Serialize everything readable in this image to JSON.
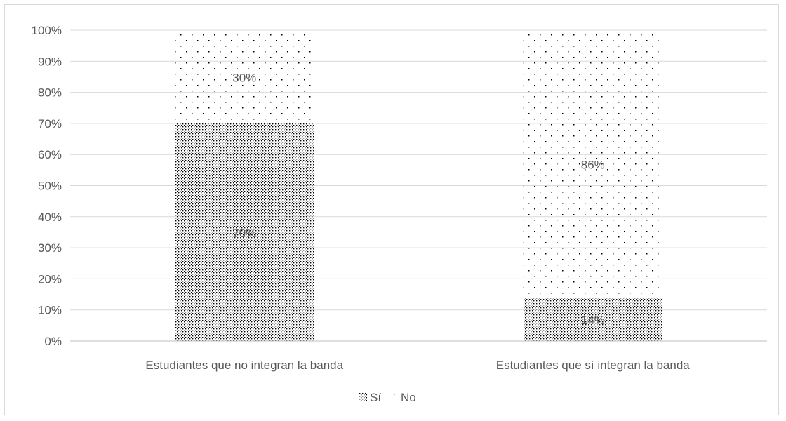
{
  "chart_data": {
    "type": "bar",
    "stacked": true,
    "categories": [
      "Estudiantes que no integran la banda",
      "Estudiantes que sí integran la banda"
    ],
    "series": [
      {
        "name": "Sí",
        "values": [
          70,
          14
        ],
        "labels": [
          "70%",
          "14%"
        ],
        "pattern": "dense-dots"
      },
      {
        "name": "No",
        "values": [
          30,
          86
        ],
        "labels": [
          "30%",
          "86%"
        ],
        "pattern": "sparse-dots"
      }
    ],
    "ylim": [
      0,
      100
    ],
    "yticks": [
      "0%",
      "10%",
      "20%",
      "30%",
      "40%",
      "50%",
      "60%",
      "70%",
      "80%",
      "90%",
      "100%"
    ],
    "grid": true,
    "legend_position": "bottom",
    "colors": {
      "grid": "#d9d9d9",
      "axis": "#bfbfbf",
      "text": "#595959",
      "dots": "#000000"
    }
  }
}
